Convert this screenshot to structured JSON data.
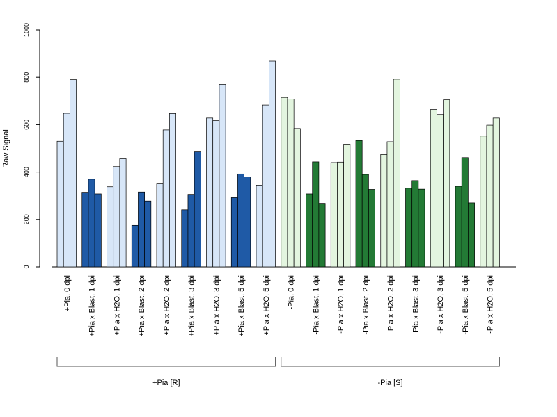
{
  "chart_data": {
    "type": "bar",
    "ylabel": "Raw Signal",
    "ylim": [
      0,
      1000
    ],
    "yticks": [
      "0",
      "200",
      "400",
      "600",
      "800",
      "1000"
    ],
    "grid": false,
    "colors": {
      "pia_plus_light": "#d7e6f8",
      "pia_plus_dark": "#1f5aa6",
      "pia_minus_light": "#e3f5df",
      "pia_minus_dark": "#237a35",
      "edge": "#000000"
    },
    "groups": [
      {
        "label": "+Pia, 0 dpi",
        "values": [
          530,
          648,
          790
        ],
        "shade": "pia_plus_light"
      },
      {
        "label": "+Pia x Blast, 1 dpi",
        "values": [
          315,
          370,
          308
        ],
        "shade": "pia_plus_dark"
      },
      {
        "label": "+Pia x H2O, 1 dpi",
        "values": [
          338,
          423,
          456
        ],
        "shade": "pia_plus_light"
      },
      {
        "label": "+Pia x Blast, 2 dpi",
        "values": [
          175,
          316,
          278
        ],
        "shade": "pia_plus_dark"
      },
      {
        "label": "+Pia x H2O, 2 dpi",
        "values": [
          350,
          578,
          647
        ],
        "shade": "pia_plus_light"
      },
      {
        "label": "+Pia x Blast, 3 dpi",
        "values": [
          241,
          306,
          488
        ],
        "shade": "pia_plus_dark"
      },
      {
        "label": "+Pia x H2O, 3 dpi",
        "values": [
          628,
          617,
          770
        ],
        "shade": "pia_plus_light"
      },
      {
        "label": "+Pia x Blast, 5 dpi",
        "values": [
          292,
          392,
          380
        ],
        "shade": "pia_plus_dark"
      },
      {
        "label": "+Pia x H2O, 5 dpi",
        "values": [
          345,
          683,
          868
        ],
        "shade": "pia_plus_light"
      },
      {
        "label": "-Pia, 0 dpi",
        "values": [
          715,
          708,
          584
        ],
        "shade": "pia_minus_light"
      },
      {
        "label": "-Pia x Blast, 1 dpi",
        "values": [
          308,
          443,
          268
        ],
        "shade": "pia_minus_dark"
      },
      {
        "label": "-Pia x H2O, 1 dpi",
        "values": [
          440,
          442,
          518
        ],
        "shade": "pia_minus_light"
      },
      {
        "label": "-Pia x Blast, 2 dpi",
        "values": [
          533,
          390,
          327
        ],
        "shade": "pia_minus_dark"
      },
      {
        "label": "-Pia x H2O, 2 dpi",
        "values": [
          474,
          528,
          792
        ],
        "shade": "pia_minus_light"
      },
      {
        "label": "-Pia x Blast, 3 dpi",
        "values": [
          332,
          364,
          328
        ],
        "shade": "pia_minus_dark"
      },
      {
        "label": "-Pia x H2O, 3 dpi",
        "values": [
          664,
          643,
          705
        ],
        "shade": "pia_minus_light"
      },
      {
        "label": "-Pia x Blast, 5 dpi",
        "values": [
          340,
          461,
          270
        ],
        "shade": "pia_minus_dark"
      },
      {
        "label": "-Pia x H2O, 5 dpi",
        "values": [
          552,
          598,
          628
        ],
        "shade": "pia_minus_light"
      }
    ],
    "brackets": [
      {
        "label": "+Pia [R]",
        "from_group": 0,
        "to_group": 8
      },
      {
        "label": "-Pia [S]",
        "from_group": 9,
        "to_group": 17
      }
    ]
  }
}
